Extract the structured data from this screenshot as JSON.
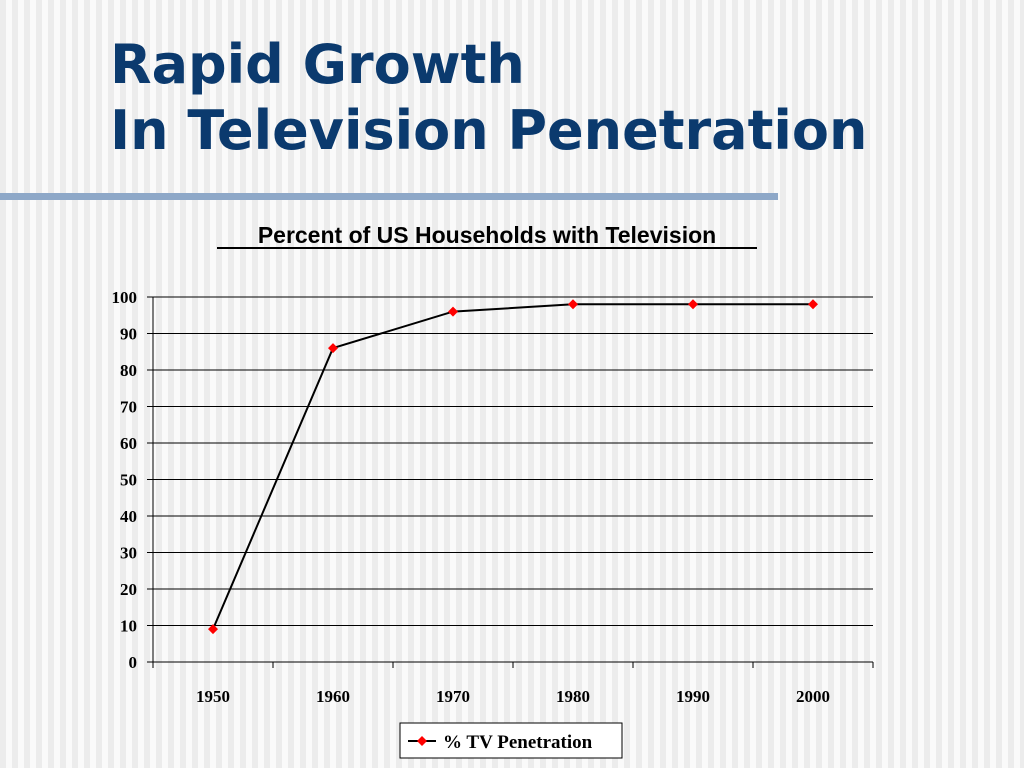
{
  "slide": {
    "title_line1": "Rapid Growth",
    "title_line2": "In Television Penetration"
  },
  "colors": {
    "title": "#0b3a6e",
    "rule": "#8ea8c8",
    "line": "#000000",
    "marker": "#ff0000"
  },
  "chart_data": {
    "type": "line",
    "title": "Percent of US Households with Television",
    "xlabel": "",
    "ylabel": "",
    "categories": [
      "1950",
      "1960",
      "1970",
      "1980",
      "1990",
      "2000"
    ],
    "series": [
      {
        "name": "% TV Penetration",
        "values": [
          9,
          86,
          96,
          98,
          98,
          98
        ],
        "marker": "diamond"
      }
    ],
    "ylim": [
      0,
      100
    ],
    "yticks": [
      0,
      10,
      20,
      30,
      40,
      50,
      60,
      70,
      80,
      90,
      100
    ],
    "grid": true,
    "legend_position": "bottom"
  }
}
